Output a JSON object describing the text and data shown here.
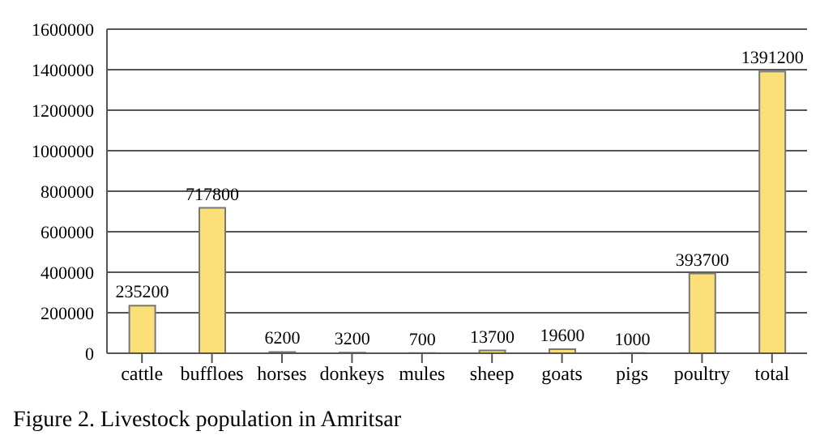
{
  "chart_data": {
    "type": "bar",
    "annotations": [
      "Figure 2. Livestock population in Amritsar"
    ],
    "categories": [
      "cattle",
      "buffloes",
      "horses",
      "donkeys",
      "mules",
      "sheep",
      "goats",
      "pigs",
      "poultry",
      "total"
    ],
    "values": [
      235200,
      717800,
      6200,
      3200,
      700,
      13700,
      19600,
      1000,
      393700,
      1391200
    ],
    "color": "#fbe07a",
    "data_labels": true,
    "grid": "y",
    "legend": false,
    "ylim": [
      0,
      1600000
    ],
    "yticks": [
      0,
      200000,
      400000,
      600000,
      800000,
      1000000,
      1200000,
      1400000,
      1600000
    ]
  }
}
